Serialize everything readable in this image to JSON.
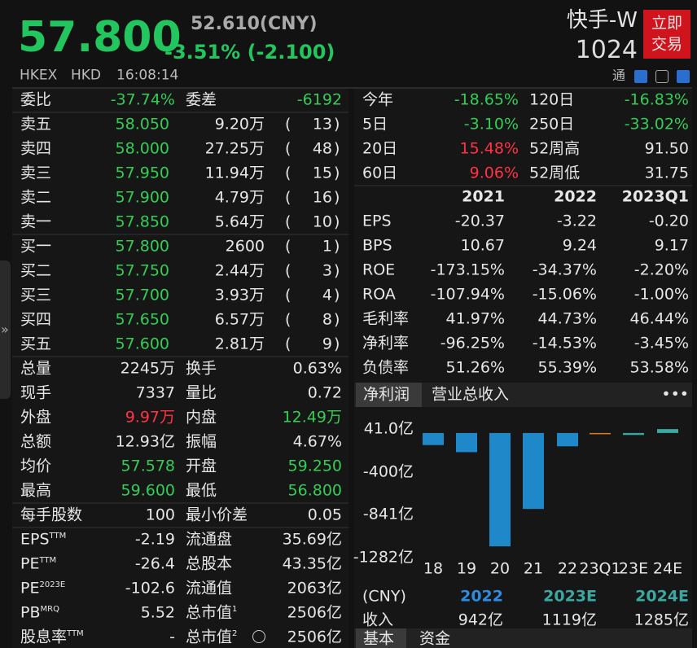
{
  "header": {
    "price": "57.800",
    "reference": "52.610(CNY)",
    "change": "-3.51% (-2.100)",
    "name": "快手-W",
    "code": "1024",
    "trade": [
      "立即",
      "交易"
    ],
    "exchange": "HKEX",
    "currency": "HKD",
    "time": "16:08:14",
    "tong": "通"
  },
  "sidebar": "»",
  "order_book": {
    "ratio": [
      "委比",
      "-37.74%",
      "委差",
      "-6192"
    ],
    "brackets": [
      "(",
      ")"
    ],
    "asks": [
      [
        "卖五",
        "58.050",
        "9.20万",
        "13"
      ],
      [
        "卖四",
        "58.000",
        "27.25万",
        "48"
      ],
      [
        "卖三",
        "57.950",
        "11.94万",
        "15"
      ],
      [
        "卖二",
        "57.900",
        "4.79万",
        "16"
      ],
      [
        "卖一",
        "57.850",
        "5.64万",
        "10"
      ]
    ],
    "bids": [
      [
        "买一",
        "57.800",
        "2600",
        "1"
      ],
      [
        "买二",
        "57.750",
        "2.44万",
        "3"
      ],
      [
        "买三",
        "57.700",
        "3.93万",
        "4"
      ],
      [
        "买四",
        "57.650",
        "6.57万",
        "8"
      ],
      [
        "买五",
        "57.600",
        "2.81万",
        "9"
      ]
    ]
  },
  "stats": [
    {
      "cells": [
        {
          "text": "总量"
        },
        "2245万",
        {
          "text": "换手"
        },
        "0.63%"
      ],
      "colors": [
        "#e6e6e6",
        "#e6e6e6"
      ]
    },
    {
      "cells": [
        {
          "text": "现手"
        },
        "7337",
        {
          "text": "量比"
        },
        "0.72"
      ],
      "colors": [
        "#e6e6e6",
        "#e6e6e6"
      ]
    },
    {
      "cells": [
        {
          "text": "外盘"
        },
        "9.97万",
        {
          "text": "内盘"
        },
        "12.49万"
      ],
      "colors": [
        "#ff3344",
        "#33cc55"
      ]
    },
    {
      "cells": [
        {
          "text": "总额"
        },
        "12.93亿",
        {
          "text": "振幅"
        },
        "4.67%"
      ],
      "colors": [
        "#e6e6e6",
        "#e6e6e6"
      ]
    },
    {
      "cells": [
        {
          "text": "均价"
        },
        "57.578",
        {
          "text": "开盘"
        },
        "59.250"
      ],
      "colors": [
        "#33cc55",
        "#33cc55"
      ]
    },
    {
      "cells": [
        {
          "text": "最高"
        },
        "59.600",
        {
          "text": "最低"
        },
        "56.800"
      ],
      "colors": [
        "#33cc55",
        "#33cc55"
      ]
    },
    {
      "cells": [
        {
          "text": "每手股数"
        },
        "100",
        {
          "text": "最小价差"
        },
        "0.05"
      ],
      "colors": [
        "#e6e6e6",
        "#e6e6e6"
      ]
    },
    {
      "cells": [
        {
          "text": "EPS",
          "sup": "TTM"
        },
        "-2.19",
        {
          "text": "流通盘"
        },
        "35.69亿"
      ],
      "colors": [
        "#e6e6e6",
        "#e6e6e6"
      ]
    },
    {
      "cells": [
        {
          "text": "PE",
          "sup": "TTM"
        },
        "-26.4",
        {
          "text": "总股本"
        },
        "43.35亿"
      ],
      "colors": [
        "#e6e6e6",
        "#e6e6e6"
      ]
    },
    {
      "cells": [
        {
          "text": "PE",
          "sup": "2023E"
        },
        "-102.6",
        {
          "text": "流通值"
        },
        "2063亿"
      ],
      "colors": [
        "#e6e6e6",
        "#e6e6e6"
      ]
    },
    {
      "cells": [
        {
          "text": "PB",
          "sup": "MRQ"
        },
        "5.52",
        {
          "text": "总市值",
          "sup": "1"
        },
        "2506亿"
      ],
      "colors": [
        "#e6e6e6",
        "#e6e6e6"
      ]
    },
    {
      "cells": [
        {
          "text": "股息率",
          "sup": "TTM"
        },
        "-",
        {
          "text": "总市值",
          "sup": "2"
        },
        "2506亿"
      ],
      "colors": [
        "#e6e6e6",
        "#e6e6e6"
      ]
    }
  ],
  "returns": [
    {
      "cells": [
        "今年",
        "-18.65%",
        "120日",
        "-16.83%"
      ],
      "colors": [
        "#33cc55",
        "#33cc55"
      ]
    },
    {
      "cells": [
        "5日",
        "-3.10%",
        "250日",
        "-33.02%"
      ],
      "colors": [
        "#33cc55",
        "#33cc55"
      ]
    },
    {
      "cells": [
        "20日",
        "15.48%",
        "52周高",
        "91.50"
      ],
      "colors": [
        "#ff3344",
        "#e6e6e6"
      ]
    },
    {
      "cells": [
        "60日",
        "9.06%",
        "52周低",
        "31.75"
      ],
      "colors": [
        "#ff3344",
        "#e6e6e6"
      ]
    }
  ],
  "financials": {
    "header": [
      "2021",
      "2022",
      "2023Q1"
    ],
    "rows": [
      [
        "EPS",
        "-20.37",
        "-3.22",
        "-0.20"
      ],
      [
        "BPS",
        "10.67",
        "9.24",
        "9.17"
      ],
      [
        "ROE",
        "-173.15%",
        "-34.37%",
        "-2.20%"
      ],
      [
        "ROA",
        "-107.94%",
        "-15.06%",
        "-1.00%"
      ],
      [
        "毛利率",
        "41.97%",
        "44.73%",
        "46.44%"
      ],
      [
        "净利率",
        "-96.25%",
        "-14.53%",
        "-3.45%"
      ],
      [
        "负债率",
        "51.26%",
        "55.39%",
        "53.58%"
      ]
    ]
  },
  "chart_tabs": [
    "净利润",
    "营业总收入",
    "•••"
  ],
  "chart_data": {
    "type": "bar",
    "categories": [
      "18",
      "19",
      "20",
      "21",
      "22",
      "23Q1",
      "23E",
      "24E"
    ],
    "values": [
      -124,
      -197,
      -1166,
      -781,
      -137,
      -2,
      -20,
      40
    ],
    "colors": [
      "#1e88c8",
      "#1e88c8",
      "#1e88c8",
      "#1e88c8",
      "#1e88c8",
      "#e07a1f",
      "#3aa8a0",
      "#3aa8a0"
    ],
    "ylim": [
      -1282,
      41
    ],
    "yticks": [
      {
        "value": 41,
        "label": "41.0亿"
      },
      {
        "value": -400,
        "label": "-400亿"
      },
      {
        "value": -841,
        "label": "-841亿"
      },
      {
        "value": -1282,
        "label": "-1282亿"
      }
    ]
  },
  "forecast": {
    "header": [
      "(CNY)",
      "2022",
      "2023E",
      "2024E"
    ],
    "header_colors": [
      "#e6e6e6",
      "#2e8be0",
      "#3aa8a0",
      "#3aa8a0"
    ],
    "rows": [
      [
        "收入",
        "942亿",
        "1119亿",
        "1285亿"
      ]
    ]
  },
  "bottom_tabs": [
    "基本",
    "资金"
  ]
}
